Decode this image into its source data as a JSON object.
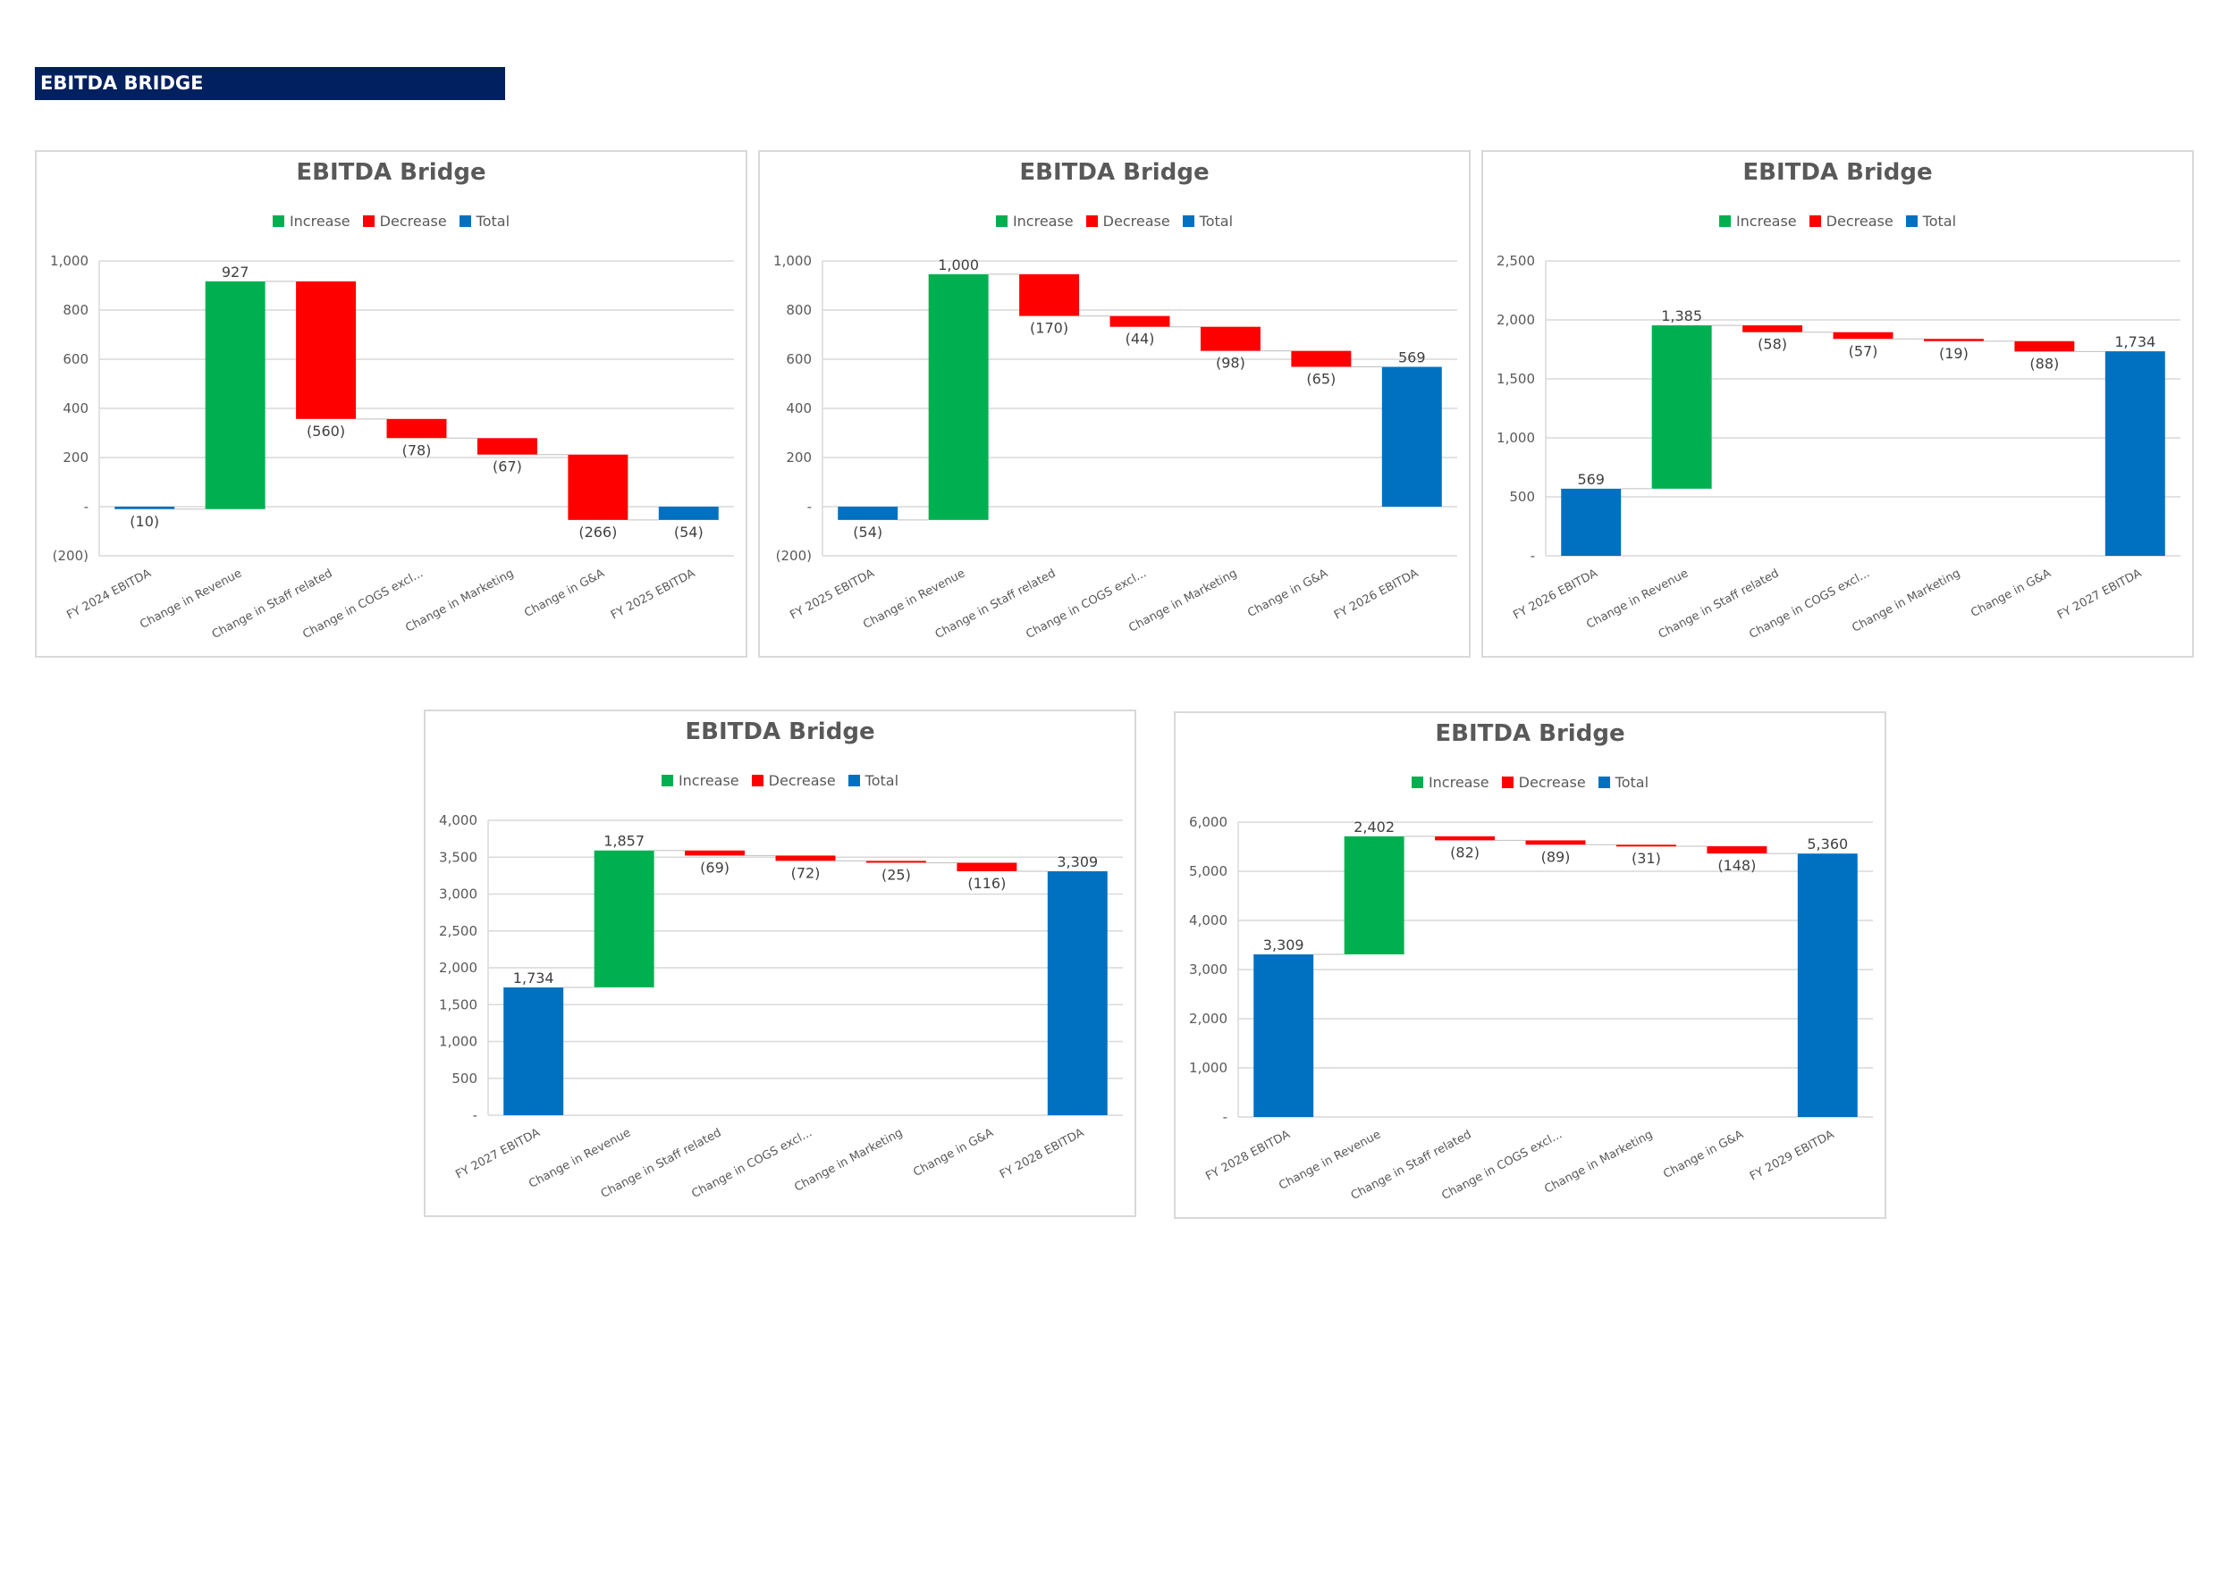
{
  "header": {
    "title": "EBITDA BRIDGE"
  },
  "colors": {
    "increase": "#00b050",
    "decrease": "#ff0000",
    "total": "#0070c0",
    "header_bg": "#002060"
  },
  "chart_data": [
    {
      "type": "bar",
      "subtype": "waterfall",
      "title": "EBITDA Bridge",
      "legend": [
        "Increase",
        "Decrease",
        "Total"
      ],
      "legend_position": "top",
      "categories": [
        "FY 2024 EBITDA",
        "Change in Revenue",
        "Change in Staff related",
        "Change in COGS excl...",
        "Change in Marketing",
        "Change in G&A",
        "FY 2025 EBITDA"
      ],
      "values": [
        -10,
        927,
        -560,
        -78,
        -67,
        -266,
        -54
      ],
      "kinds": [
        "total",
        "increase",
        "decrease",
        "decrease",
        "decrease",
        "decrease",
        "total"
      ],
      "value_labels": [
        "(10)",
        "927",
        "(560)",
        "(78)",
        "(67)",
        "(266)",
        "(54)"
      ],
      "ylim": [
        -200,
        1000
      ],
      "yticks": [
        -200,
        0,
        200,
        400,
        600,
        800,
        1000
      ],
      "ytick_labels": [
        "(200)",
        "-",
        "200",
        "400",
        "600",
        "800",
        "1,000"
      ],
      "grid": true
    },
    {
      "type": "bar",
      "subtype": "waterfall",
      "title": "EBITDA Bridge",
      "legend": [
        "Increase",
        "Decrease",
        "Total"
      ],
      "legend_position": "top",
      "categories": [
        "FY 2025 EBITDA",
        "Change in Revenue",
        "Change in Staff related",
        "Change in COGS excl...",
        "Change in Marketing",
        "Change in G&A",
        "FY 2026 EBITDA"
      ],
      "values": [
        -54,
        1000,
        -170,
        -44,
        -98,
        -65,
        569
      ],
      "kinds": [
        "total",
        "increase",
        "decrease",
        "decrease",
        "decrease",
        "decrease",
        "total"
      ],
      "value_labels": [
        "(54)",
        "1,000",
        "(170)",
        "(44)",
        "(98)",
        "(65)",
        "569"
      ],
      "ylim": [
        -200,
        1000
      ],
      "yticks": [
        -200,
        0,
        200,
        400,
        600,
        800,
        1000
      ],
      "ytick_labels": [
        "(200)",
        "-",
        "200",
        "400",
        "600",
        "800",
        "1,000"
      ],
      "grid": true
    },
    {
      "type": "bar",
      "subtype": "waterfall",
      "title": "EBITDA Bridge",
      "legend": [
        "Increase",
        "Decrease",
        "Total"
      ],
      "legend_position": "top",
      "categories": [
        "FY 2026 EBITDA",
        "Change in Revenue",
        "Change in Staff related",
        "Change in COGS excl...",
        "Change in Marketing",
        "Change in G&A",
        "FY 2027 EBITDA"
      ],
      "values": [
        569,
        1385,
        -58,
        -57,
        -19,
        -88,
        1734
      ],
      "kinds": [
        "total",
        "increase",
        "decrease",
        "decrease",
        "decrease",
        "decrease",
        "total"
      ],
      "value_labels": [
        "569",
        "1,385",
        "(58)",
        "(57)",
        "(19)",
        "(88)",
        "1,734"
      ],
      "ylim": [
        0,
        2500
      ],
      "yticks": [
        0,
        500,
        1000,
        1500,
        2000,
        2500
      ],
      "ytick_labels": [
        "-",
        "500",
        "1,000",
        "1,500",
        "2,000",
        "2,500"
      ],
      "grid": true
    },
    {
      "type": "bar",
      "subtype": "waterfall",
      "title": "EBITDA Bridge",
      "legend": [
        "Increase",
        "Decrease",
        "Total"
      ],
      "legend_position": "top",
      "categories": [
        "FY 2027 EBITDA",
        "Change in Revenue",
        "Change in Staff related",
        "Change in COGS excl...",
        "Change in Marketing",
        "Change in G&A",
        "FY 2028 EBITDA"
      ],
      "values": [
        1734,
        1857,
        -69,
        -72,
        -25,
        -116,
        3309
      ],
      "kinds": [
        "total",
        "increase",
        "decrease",
        "decrease",
        "decrease",
        "decrease",
        "total"
      ],
      "value_labels": [
        "1,734",
        "1,857",
        "(69)",
        "(72)",
        "(25)",
        "(116)",
        "3,309"
      ],
      "ylim": [
        0,
        4000
      ],
      "yticks": [
        0,
        500,
        1000,
        1500,
        2000,
        2500,
        3000,
        3500,
        4000
      ],
      "ytick_labels": [
        "-",
        "500",
        "1,000",
        "1,500",
        "2,000",
        "2,500",
        "3,000",
        "3,500",
        "4,000"
      ],
      "grid": true
    },
    {
      "type": "bar",
      "subtype": "waterfall",
      "title": "EBITDA Bridge",
      "legend": [
        "Increase",
        "Decrease",
        "Total"
      ],
      "legend_position": "top",
      "categories": [
        "FY 2028 EBITDA",
        "Change in Revenue",
        "Change in Staff related",
        "Change in COGS excl...",
        "Change in Marketing",
        "Change in G&A",
        "FY 2029 EBITDA"
      ],
      "values": [
        3309,
        2402,
        -82,
        -89,
        -31,
        -148,
        5360
      ],
      "kinds": [
        "total",
        "increase",
        "decrease",
        "decrease",
        "decrease",
        "decrease",
        "total"
      ],
      "value_labels": [
        "3,309",
        "2,402",
        "(82)",
        "(89)",
        "(31)",
        "(148)",
        "5,360"
      ],
      "ylim": [
        0,
        6000
      ],
      "yticks": [
        0,
        1000,
        2000,
        3000,
        4000,
        5000,
        6000
      ],
      "ytick_labels": [
        "-",
        "1,000",
        "2,000",
        "3,000",
        "4,000",
        "5,000",
        "6,000"
      ],
      "grid": true
    }
  ]
}
